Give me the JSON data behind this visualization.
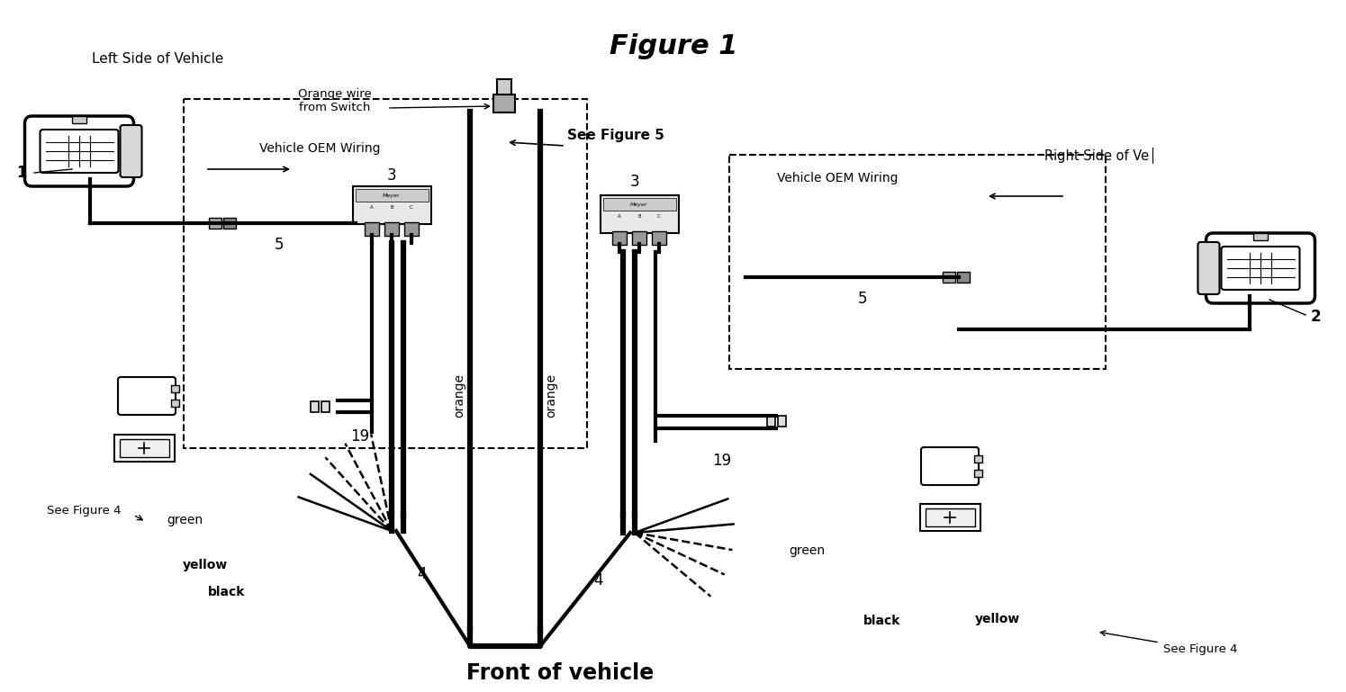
{
  "bg": "#ffffff",
  "fg": "#000000",
  "title": "Figure 1",
  "front_label": "Front of vehicle",
  "left_label": "Left Side of Vehicle",
  "right_label": "Right Side of Veℓ",
  "oem_label": "Vehicle OEM Wiring",
  "orange_switch_label": "Orange wire\nfrom Switch",
  "see_fig5": "See Figure 5",
  "see_fig4": "See Figure 4",
  "green": "green",
  "yellow": "yellow",
  "black": "black",
  "orange": "orange",
  "n1": "1",
  "n2": "2",
  "n3": "3",
  "n4": "4",
  "n5": "5",
  "n19": "19"
}
